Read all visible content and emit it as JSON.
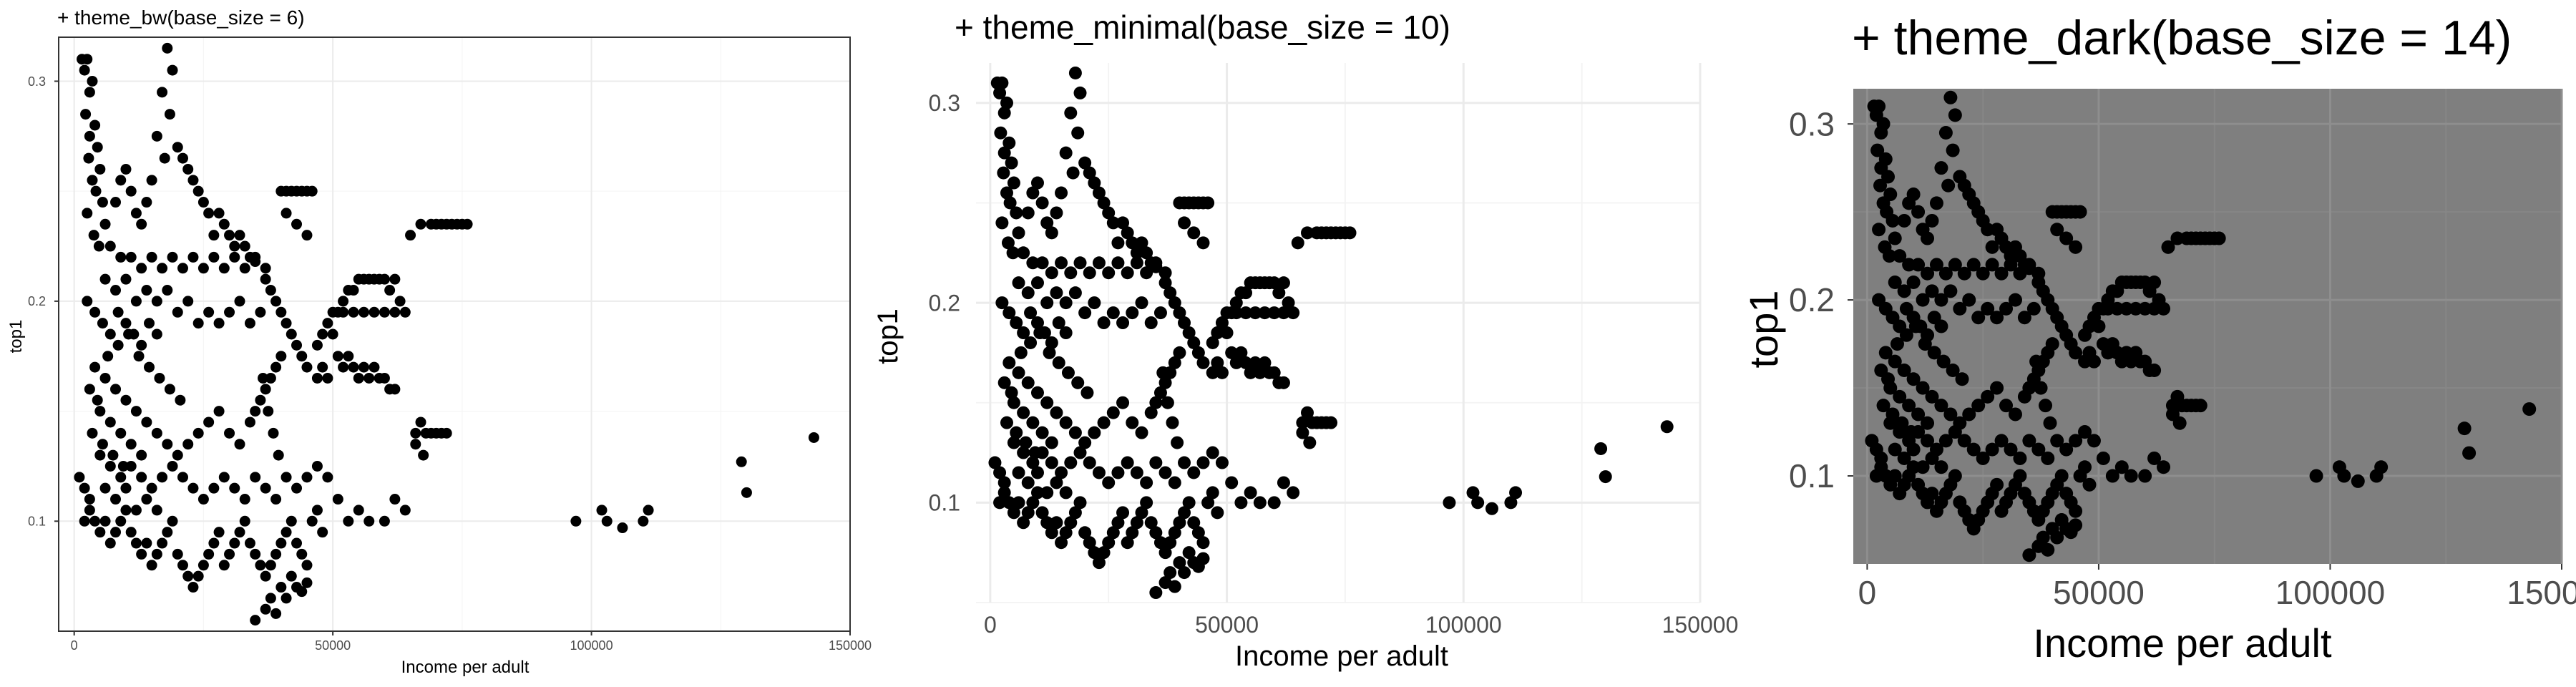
{
  "panels": [
    {
      "id": "bw",
      "title": "+ theme_bw(base_size = 6)",
      "theme": "bw",
      "base_size": 6
    },
    {
      "id": "minimal",
      "title": "+ theme_minimal(base_size = 10)",
      "theme": "minimal",
      "base_size": 10
    },
    {
      "id": "dark",
      "title": "+ theme_dark(base_size = 14)",
      "theme": "dark",
      "base_size": 14
    }
  ],
  "chart_data": {
    "type": "scatter",
    "xlabel": "Income per adult",
    "ylabel": "top1",
    "xlim": [
      -3000,
      150000
    ],
    "ylim": [
      0.05,
      0.32
    ],
    "x_ticks": [
      0,
      50000,
      100000,
      150000
    ],
    "y_ticks": [
      0.1,
      0.2,
      0.3
    ],
    "x_tick_labels": [
      "0",
      "50000",
      "100000",
      "150000"
    ],
    "y_tick_labels": [
      "0.1",
      "0.2",
      "0.3"
    ],
    "grid": true,
    "point_color": "#000000",
    "points": [
      [
        1500,
        0.31
      ],
      [
        2000,
        0.305
      ],
      [
        2500,
        0.31
      ],
      [
        3000,
        0.295
      ],
      [
        3500,
        0.3
      ],
      [
        2200,
        0.285
      ],
      [
        4000,
        0.28
      ],
      [
        3000,
        0.275
      ],
      [
        4500,
        0.27
      ],
      [
        2800,
        0.265
      ],
      [
        5000,
        0.26
      ],
      [
        3500,
        0.255
      ],
      [
        4200,
        0.25
      ],
      [
        5500,
        0.245
      ],
      [
        2500,
        0.24
      ],
      [
        6000,
        0.235
      ],
      [
        3800,
        0.23
      ],
      [
        7000,
        0.225
      ],
      [
        4800,
        0.225
      ],
      [
        9000,
        0.22
      ],
      [
        11000,
        0.22
      ],
      [
        13000,
        0.215
      ],
      [
        15000,
        0.22
      ],
      [
        17000,
        0.215
      ],
      [
        19000,
        0.22
      ],
      [
        21000,
        0.215
      ],
      [
        23000,
        0.22
      ],
      [
        25000,
        0.215
      ],
      [
        27000,
        0.22
      ],
      [
        29000,
        0.215
      ],
      [
        31000,
        0.22
      ],
      [
        33000,
        0.215
      ],
      [
        35000,
        0.22
      ],
      [
        37000,
        0.215
      ],
      [
        6000,
        0.21
      ],
      [
        8000,
        0.205
      ],
      [
        10000,
        0.21
      ],
      [
        12000,
        0.2
      ],
      [
        14000,
        0.205
      ],
      [
        16000,
        0.2
      ],
      [
        18000,
        0.205
      ],
      [
        20000,
        0.195
      ],
      [
        22000,
        0.2
      ],
      [
        24000,
        0.19
      ],
      [
        26000,
        0.195
      ],
      [
        28000,
        0.19
      ],
      [
        30000,
        0.195
      ],
      [
        32000,
        0.2
      ],
      [
        34000,
        0.19
      ],
      [
        36000,
        0.195
      ],
      [
        18000,
        0.315
      ],
      [
        19000,
        0.305
      ],
      [
        17000,
        0.295
      ],
      [
        18500,
        0.285
      ],
      [
        16000,
        0.275
      ],
      [
        17500,
        0.265
      ],
      [
        15000,
        0.255
      ],
      [
        14000,
        0.245
      ],
      [
        13000,
        0.235
      ],
      [
        12000,
        0.24
      ],
      [
        11000,
        0.25
      ],
      [
        10000,
        0.26
      ],
      [
        9000,
        0.255
      ],
      [
        8000,
        0.245
      ],
      [
        20000,
        0.27
      ],
      [
        21000,
        0.265
      ],
      [
        22000,
        0.26
      ],
      [
        23000,
        0.255
      ],
      [
        24000,
        0.25
      ],
      [
        25000,
        0.245
      ],
      [
        26000,
        0.24
      ],
      [
        27000,
        0.23
      ],
      [
        28000,
        0.24
      ],
      [
        29000,
        0.235
      ],
      [
        30000,
        0.23
      ],
      [
        31000,
        0.225
      ],
      [
        32000,
        0.23
      ],
      [
        33000,
        0.225
      ],
      [
        34000,
        0.22
      ],
      [
        35000,
        0.218
      ],
      [
        40000,
        0.25
      ],
      [
        41000,
        0.25
      ],
      [
        42000,
        0.25
      ],
      [
        43000,
        0.25
      ],
      [
        44000,
        0.25
      ],
      [
        45000,
        0.25
      ],
      [
        46000,
        0.25
      ],
      [
        41000,
        0.24
      ],
      [
        43000,
        0.235
      ],
      [
        45000,
        0.23
      ],
      [
        37000,
        0.21
      ],
      [
        38000,
        0.205
      ],
      [
        39000,
        0.2
      ],
      [
        40000,
        0.195
      ],
      [
        41000,
        0.19
      ],
      [
        42000,
        0.185
      ],
      [
        43000,
        0.18
      ],
      [
        44000,
        0.175
      ],
      [
        45000,
        0.17
      ],
      [
        40000,
        0.175
      ],
      [
        39000,
        0.17
      ],
      [
        38000,
        0.165
      ],
      [
        37000,
        0.16
      ],
      [
        36000,
        0.155
      ],
      [
        35000,
        0.15
      ],
      [
        34000,
        0.145
      ],
      [
        36500,
        0.165
      ],
      [
        37500,
        0.15
      ],
      [
        38500,
        0.14
      ],
      [
        39500,
        0.13
      ],
      [
        47000,
        0.18
      ],
      [
        48000,
        0.185
      ],
      [
        49000,
        0.19
      ],
      [
        50000,
        0.195
      ],
      [
        51000,
        0.195
      ],
      [
        52000,
        0.2
      ],
      [
        53000,
        0.205
      ],
      [
        54000,
        0.205
      ],
      [
        55000,
        0.21
      ],
      [
        56000,
        0.21
      ],
      [
        57000,
        0.21
      ],
      [
        58000,
        0.21
      ],
      [
        59000,
        0.21
      ],
      [
        60000,
        0.21
      ],
      [
        61000,
        0.205
      ],
      [
        62000,
        0.21
      ],
      [
        63000,
        0.2
      ],
      [
        64000,
        0.195
      ],
      [
        52000,
        0.195
      ],
      [
        54000,
        0.195
      ],
      [
        56000,
        0.195
      ],
      [
        58000,
        0.195
      ],
      [
        60000,
        0.195
      ],
      [
        62000,
        0.195
      ],
      [
        50000,
        0.185
      ],
      [
        51000,
        0.175
      ],
      [
        52000,
        0.17
      ],
      [
        53000,
        0.175
      ],
      [
        54000,
        0.17
      ],
      [
        55000,
        0.165
      ],
      [
        56000,
        0.17
      ],
      [
        57000,
        0.165
      ],
      [
        58000,
        0.17
      ],
      [
        59000,
        0.165
      ],
      [
        60000,
        0.165
      ],
      [
        61000,
        0.16
      ],
      [
        62000,
        0.16
      ],
      [
        48000,
        0.17
      ],
      [
        47000,
        0.165
      ],
      [
        49000,
        0.165
      ],
      [
        65000,
        0.23
      ],
      [
        67000,
        0.235
      ],
      [
        69000,
        0.235
      ],
      [
        70000,
        0.235
      ],
      [
        71000,
        0.235
      ],
      [
        72000,
        0.235
      ],
      [
        73000,
        0.235
      ],
      [
        74000,
        0.235
      ],
      [
        75000,
        0.235
      ],
      [
        76000,
        0.235
      ],
      [
        66000,
        0.14
      ],
      [
        67000,
        0.145
      ],
      [
        68000,
        0.14
      ],
      [
        69000,
        0.14
      ],
      [
        70000,
        0.14
      ],
      [
        71000,
        0.14
      ],
      [
        72000,
        0.14
      ],
      [
        66000,
        0.135
      ],
      [
        67500,
        0.13
      ],
      [
        1000,
        0.12
      ],
      [
        2000,
        0.115
      ],
      [
        3000,
        0.11
      ],
      [
        2000,
        0.1
      ],
      [
        3000,
        0.105
      ],
      [
        4000,
        0.1
      ],
      [
        5000,
        0.095
      ],
      [
        6000,
        0.1
      ],
      [
        7000,
        0.09
      ],
      [
        8000,
        0.095
      ],
      [
        9000,
        0.1
      ],
      [
        10000,
        0.105
      ],
      [
        11000,
        0.095
      ],
      [
        12000,
        0.09
      ],
      [
        13000,
        0.085
      ],
      [
        14000,
        0.09
      ],
      [
        15000,
        0.08
      ],
      [
        16000,
        0.085
      ],
      [
        17000,
        0.09
      ],
      [
        18000,
        0.095
      ],
      [
        19000,
        0.1
      ],
      [
        20000,
        0.085
      ],
      [
        21000,
        0.08
      ],
      [
        22000,
        0.075
      ],
      [
        23000,
        0.07
      ],
      [
        24000,
        0.075
      ],
      [
        25000,
        0.08
      ],
      [
        26000,
        0.085
      ],
      [
        27000,
        0.09
      ],
      [
        28000,
        0.095
      ],
      [
        29000,
        0.08
      ],
      [
        30000,
        0.085
      ],
      [
        31000,
        0.09
      ],
      [
        32000,
        0.095
      ],
      [
        33000,
        0.1
      ],
      [
        34000,
        0.09
      ],
      [
        35000,
        0.085
      ],
      [
        36000,
        0.08
      ],
      [
        37000,
        0.075
      ],
      [
        38000,
        0.08
      ],
      [
        39000,
        0.085
      ],
      [
        40000,
        0.09
      ],
      [
        41000,
        0.095
      ],
      [
        42000,
        0.1
      ],
      [
        43000,
        0.09
      ],
      [
        44000,
        0.085
      ],
      [
        45000,
        0.08
      ],
      [
        46000,
        0.1
      ],
      [
        47000,
        0.105
      ],
      [
        48000,
        0.095
      ],
      [
        35000,
        0.055
      ],
      [
        37000,
        0.06
      ],
      [
        38000,
        0.065
      ],
      [
        40000,
        0.07
      ],
      [
        41000,
        0.065
      ],
      [
        43000,
        0.07
      ],
      [
        42000,
        0.075
      ],
      [
        44000,
        0.068
      ],
      [
        45000,
        0.072
      ],
      [
        39000,
        0.058
      ],
      [
        5000,
        0.13
      ],
      [
        7000,
        0.125
      ],
      [
        9000,
        0.12
      ],
      [
        11000,
        0.125
      ],
      [
        13000,
        0.12
      ],
      [
        15000,
        0.115
      ],
      [
        17000,
        0.12
      ],
      [
        19000,
        0.125
      ],
      [
        21000,
        0.12
      ],
      [
        23000,
        0.115
      ],
      [
        25000,
        0.11
      ],
      [
        27000,
        0.115
      ],
      [
        29000,
        0.12
      ],
      [
        31000,
        0.115
      ],
      [
        33000,
        0.11
      ],
      [
        35000,
        0.12
      ],
      [
        37000,
        0.115
      ],
      [
        39000,
        0.11
      ],
      [
        41000,
        0.12
      ],
      [
        43000,
        0.115
      ],
      [
        45000,
        0.12
      ],
      [
        47000,
        0.125
      ],
      [
        49000,
        0.12
      ],
      [
        51000,
        0.11
      ],
      [
        53000,
        0.1
      ],
      [
        55000,
        0.105
      ],
      [
        57000,
        0.1
      ],
      [
        60000,
        0.1
      ],
      [
        62000,
        0.11
      ],
      [
        64000,
        0.105
      ],
      [
        4000,
        0.17
      ],
      [
        6000,
        0.165
      ],
      [
        8000,
        0.16
      ],
      [
        10000,
        0.155
      ],
      [
        12000,
        0.15
      ],
      [
        14000,
        0.145
      ],
      [
        16000,
        0.14
      ],
      [
        18000,
        0.135
      ],
      [
        20000,
        0.13
      ],
      [
        22000,
        0.135
      ],
      [
        24000,
        0.14
      ],
      [
        26000,
        0.145
      ],
      [
        28000,
        0.15
      ],
      [
        30000,
        0.14
      ],
      [
        32000,
        0.135
      ],
      [
        5000,
        0.15
      ],
      [
        7000,
        0.145
      ],
      [
        9000,
        0.14
      ],
      [
        11000,
        0.135
      ],
      [
        13000,
        0.13
      ],
      [
        3000,
        0.16
      ],
      [
        4500,
        0.155
      ],
      [
        6500,
        0.175
      ],
      [
        8500,
        0.18
      ],
      [
        10500,
        0.185
      ],
      [
        12500,
        0.175
      ],
      [
        14500,
        0.17
      ],
      [
        16500,
        0.165
      ],
      [
        18500,
        0.16
      ],
      [
        20500,
        0.155
      ],
      [
        3500,
        0.14
      ],
      [
        5500,
        0.135
      ],
      [
        7500,
        0.13
      ],
      [
        9500,
        0.125
      ],
      [
        6000,
        0.115
      ],
      [
        8000,
        0.11
      ],
      [
        10000,
        0.115
      ],
      [
        12000,
        0.105
      ],
      [
        14000,
        0.11
      ],
      [
        16000,
        0.105
      ],
      [
        2500,
        0.2
      ],
      [
        4000,
        0.195
      ],
      [
        5500,
        0.19
      ],
      [
        7000,
        0.185
      ],
      [
        8500,
        0.195
      ],
      [
        10000,
        0.19
      ],
      [
        11500,
        0.185
      ],
      [
        13000,
        0.18
      ],
      [
        14500,
        0.19
      ],
      [
        16000,
        0.185
      ],
      [
        97000,
        0.1
      ],
      [
        102000,
        0.105
      ],
      [
        103000,
        0.1
      ],
      [
        106000,
        0.097
      ],
      [
        110000,
        0.1
      ],
      [
        111000,
        0.105
      ],
      [
        129000,
        0.127
      ],
      [
        130000,
        0.113
      ],
      [
        143000,
        0.138
      ]
    ]
  }
}
